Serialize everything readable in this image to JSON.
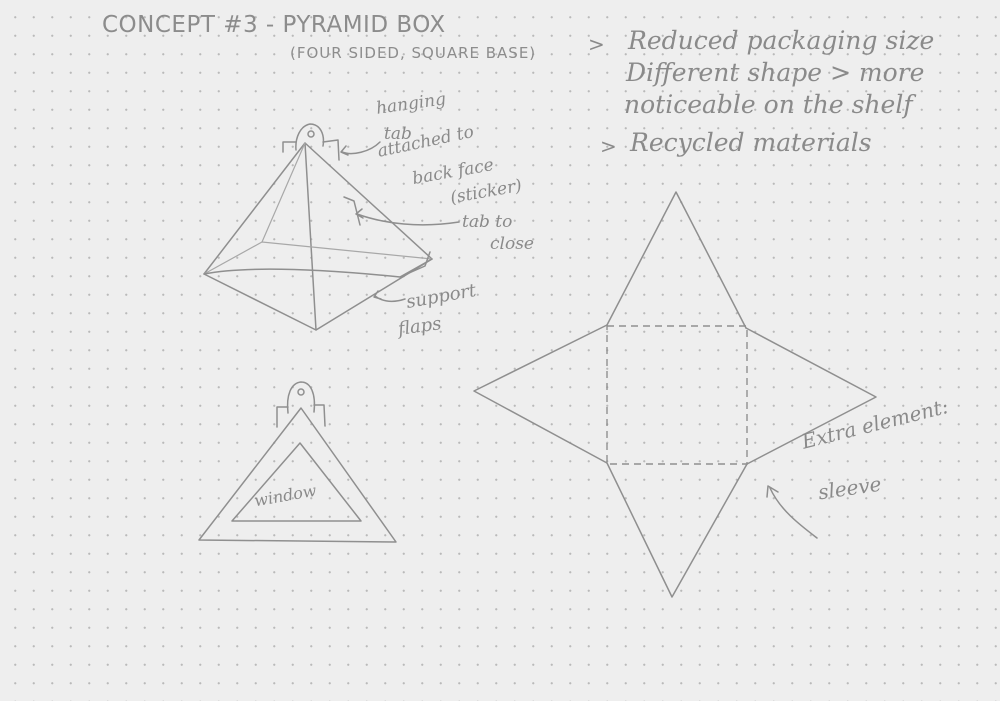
{
  "title": "CONCEPT #3 - PYRAMID BOX",
  "subtitle": "(FOUR SIDED, SQUARE BASE)",
  "notes": [
    {
      "bullet": ">",
      "text": "Reduced packaging size"
    },
    {
      "bullet": "",
      "text": "Different shape > more"
    },
    {
      "bullet": "",
      "text": "noticeable on the shelf"
    },
    {
      "bullet": ">",
      "text": "Recycled materials"
    }
  ],
  "annotations": {
    "hanging_tab": [
      "hanging",
      "tab",
      "attached to",
      "back face",
      "(sticker)"
    ],
    "tab_to_close": [
      "tab to",
      "close"
    ],
    "support_flaps": [
      "support",
      "flaps"
    ],
    "window": "window",
    "extra_element": [
      "Extra element:",
      "sleeve"
    ]
  },
  "colors": {
    "paper": "#eeeeee",
    "dots": "#b9b9b9",
    "pencil": "#8f8f8f"
  }
}
